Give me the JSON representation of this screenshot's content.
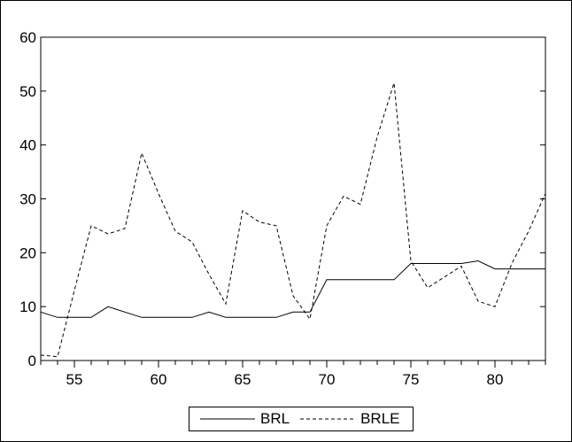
{
  "chart_data": {
    "type": "line",
    "title": "",
    "xlabel": "",
    "ylabel": "",
    "xlim": [
      53,
      83
    ],
    "ylim": [
      0,
      60
    ],
    "x_ticks": [
      55,
      60,
      65,
      70,
      75,
      80
    ],
    "y_ticks": [
      0,
      10,
      20,
      30,
      40,
      50,
      60
    ],
    "grid": false,
    "legend": "bottom-center",
    "x": [
      53,
      54,
      55,
      56,
      57,
      58,
      59,
      60,
      61,
      62,
      63,
      64,
      65,
      66,
      67,
      68,
      69,
      70,
      71,
      72,
      73,
      74,
      75,
      76,
      77,
      78,
      79,
      80,
      81,
      82,
      83
    ],
    "series": [
      {
        "name": "BRL",
        "style": "solid",
        "color": "#000000",
        "values": [
          9,
          8,
          8,
          8,
          10,
          9,
          8,
          8,
          8,
          8,
          9,
          8,
          8,
          8,
          8,
          9,
          9,
          15,
          15,
          15,
          15,
          15,
          18,
          18,
          18,
          18,
          18.5,
          17,
          17,
          17,
          17
        ]
      },
      {
        "name": "BRLE",
        "style": "dashed",
        "color": "#000000",
        "values": [
          1,
          0.7,
          13,
          25,
          23.5,
          24.5,
          38.5,
          31,
          24,
          22,
          16,
          10.5,
          27.8,
          25.7,
          25,
          12,
          7.7,
          25,
          30.5,
          29,
          41.5,
          51.5,
          18.5,
          13.5,
          15.5,
          17.5,
          11,
          10,
          18,
          24,
          31
        ]
      }
    ]
  }
}
